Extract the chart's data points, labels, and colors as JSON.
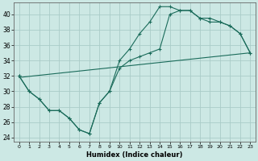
{
  "xlabel": "Humidex (Indice chaleur)",
  "background_color": "#cce8e4",
  "grid_color": "#aaccc8",
  "line_color": "#1a6b5a",
  "xlim": [
    -0.5,
    23.5
  ],
  "ylim": [
    23.5,
    41.5
  ],
  "xticks": [
    0,
    1,
    2,
    3,
    4,
    5,
    6,
    7,
    8,
    9,
    10,
    11,
    12,
    13,
    14,
    15,
    16,
    17,
    18,
    19,
    20,
    21,
    22,
    23
  ],
  "yticks": [
    24,
    26,
    28,
    30,
    32,
    34,
    36,
    38,
    40
  ],
  "line1_x": [
    0,
    1,
    2,
    3,
    4,
    5,
    6,
    7,
    8,
    9,
    10,
    11,
    12,
    13,
    14,
    15,
    16,
    17,
    18,
    19,
    20,
    21,
    22,
    23
  ],
  "line1_y": [
    32,
    30,
    29,
    27.5,
    27.5,
    26.5,
    25,
    24.5,
    28.5,
    30,
    34,
    35.5,
    37.5,
    39,
    41,
    41,
    40.5,
    40.5,
    39.5,
    39.5,
    39,
    38.5,
    37.5,
    35
  ],
  "line2_x": [
    0,
    1,
    2,
    3,
    4,
    5,
    6,
    7,
    8,
    9,
    10,
    11,
    12,
    13,
    14,
    15,
    16,
    17,
    18,
    19,
    20,
    21,
    22,
    23
  ],
  "line2_y": [
    32,
    30,
    29,
    27.5,
    27.5,
    26.5,
    25,
    24.5,
    28.5,
    30,
    33,
    34,
    34.5,
    35,
    35.5,
    40,
    40.5,
    40.5,
    39.5,
    39,
    39,
    38.5,
    37.5,
    35
  ],
  "line3_x": [
    0,
    23
  ],
  "line3_y": [
    31.8,
    35.0
  ],
  "marker": "+",
  "markersize": 3.5
}
